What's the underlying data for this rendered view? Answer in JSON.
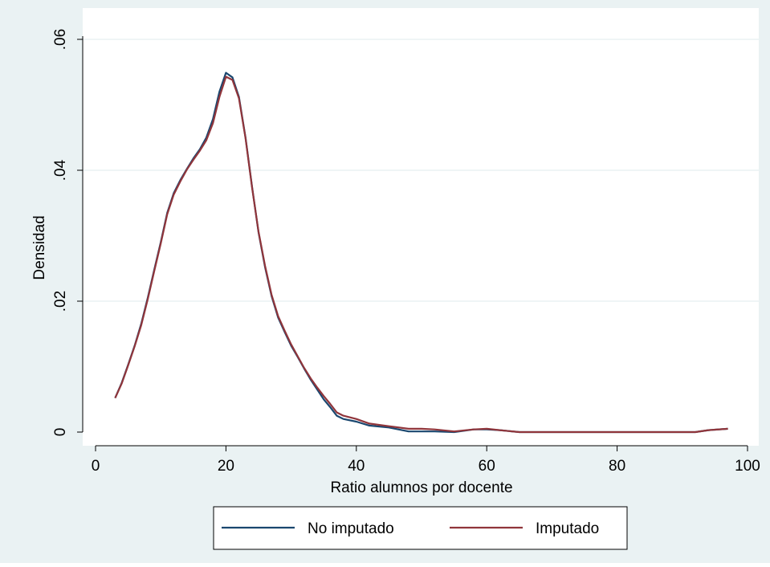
{
  "chart_data": {
    "type": "line",
    "title": "",
    "xlabel": "Ratio alumnos por docente",
    "ylabel": "Densidad",
    "xlim": [
      0,
      100
    ],
    "ylim": [
      0,
      0.06
    ],
    "x_ticks": [
      0,
      20,
      40,
      60,
      80,
      100
    ],
    "x_tick_labels": [
      "0",
      "20",
      "40",
      "60",
      "80",
      "100"
    ],
    "y_ticks": [
      0,
      0.02,
      0.04,
      0.06
    ],
    "y_tick_labels": [
      "0",
      ".02",
      ".04",
      ".06"
    ],
    "grid": true,
    "legend_position": "bottom",
    "series": [
      {
        "name": "No imputado",
        "color": "#1a476f",
        "x": [
          3,
          4,
          5,
          6,
          7,
          8,
          9,
          10,
          11,
          12,
          13,
          14,
          15,
          16,
          17,
          18,
          19,
          20,
          21,
          22,
          23,
          24,
          25,
          26,
          27,
          28,
          29,
          30,
          31,
          32,
          33,
          34,
          35,
          36,
          37,
          38,
          40,
          42,
          45,
          48,
          50,
          52,
          55,
          58,
          60,
          62,
          65,
          70,
          80,
          92,
          94,
          97
        ],
        "y": [
          0.0052,
          0.0075,
          0.0103,
          0.0132,
          0.0165,
          0.0205,
          0.0248,
          0.029,
          0.0335,
          0.0365,
          0.0385,
          0.0402,
          0.0418,
          0.0432,
          0.045,
          0.0478,
          0.052,
          0.0549,
          0.0542,
          0.0512,
          0.045,
          0.0375,
          0.0305,
          0.0252,
          0.0208,
          0.0175,
          0.0153,
          0.0132,
          0.0115,
          0.0097,
          0.008,
          0.0065,
          0.005,
          0.0038,
          0.0025,
          0.002,
          0.0016,
          0.001,
          0.0007,
          0.0001,
          0.0001,
          0.0001,
          0.0,
          0.0004,
          0.0004,
          0.0003,
          0.0,
          0.0,
          0.0,
          0.0,
          0.0003,
          0.0005
        ]
      },
      {
        "name": "Imputado",
        "color": "#90353b",
        "x": [
          3,
          4,
          5,
          6,
          7,
          8,
          9,
          10,
          11,
          12,
          13,
          14,
          15,
          16,
          17,
          18,
          19,
          20,
          21,
          22,
          23,
          24,
          25,
          26,
          27,
          28,
          29,
          30,
          31,
          32,
          33,
          34,
          35,
          36,
          37,
          38,
          40,
          42,
          45,
          48,
          50,
          52,
          55,
          58,
          60,
          62,
          65,
          70,
          80,
          92,
          94,
          97
        ],
        "y": [
          0.0052,
          0.0074,
          0.0102,
          0.0131,
          0.0163,
          0.0203,
          0.0246,
          0.0288,
          0.0333,
          0.0363,
          0.0383,
          0.0401,
          0.0416,
          0.043,
          0.0446,
          0.0472,
          0.0512,
          0.0543,
          0.0538,
          0.051,
          0.0449,
          0.0374,
          0.0306,
          0.0254,
          0.021,
          0.0177,
          0.0155,
          0.0134,
          0.0116,
          0.0098,
          0.0082,
          0.0068,
          0.0055,
          0.0043,
          0.003,
          0.0025,
          0.002,
          0.0013,
          0.0009,
          0.0005,
          0.0005,
          0.0004,
          0.0001,
          0.0004,
          0.0005,
          0.0003,
          0.0,
          0.0,
          0.0,
          0.0,
          0.0003,
          0.0005
        ]
      }
    ]
  },
  "colors": {
    "outer_background": "#eaf2f3",
    "plot_background": "#ffffff",
    "grid": "#eaf2f3",
    "axis": "#000000"
  }
}
